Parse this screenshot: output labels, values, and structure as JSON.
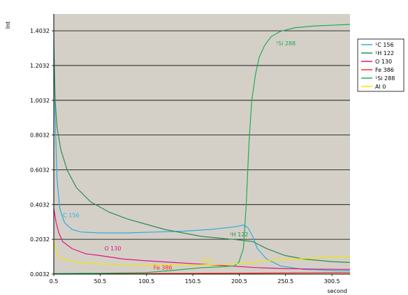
{
  "chart_data": {
    "type": "line",
    "title": "",
    "xlabel": "second",
    "ylabel": "Int",
    "xlim": [
      0.5,
      320
    ],
    "ylim": [
      0.0032,
      1.5
    ],
    "x_ticks": [
      "0.5",
      "50.5",
      "100.5",
      "150.5",
      "200.5",
      "250.5",
      "300.5"
    ],
    "y_ticks": [
      "0.0032",
      "0.2032",
      "0.4032",
      "0.6032",
      "0.8032",
      "1.0032",
      "1.2032",
      "1.4032"
    ],
    "grid": "horizontal",
    "legend_position": "right",
    "plot_background": "#d4d0c8",
    "series": [
      {
        "name": "¹C 156",
        "color": "#33aadd",
        "annotation": {
          "text": "¹C 156",
          "x": 8,
          "y": 0.33
        },
        "points": [
          [
            0.5,
            1.4
          ],
          [
            2,
            0.9
          ],
          [
            4,
            0.55
          ],
          [
            7,
            0.38
          ],
          [
            12,
            0.3
          ],
          [
            20,
            0.26
          ],
          [
            30,
            0.245
          ],
          [
            50,
            0.24
          ],
          [
            80,
            0.24
          ],
          [
            110,
            0.245
          ],
          [
            140,
            0.25
          ],
          [
            170,
            0.26
          ],
          [
            195,
            0.275
          ],
          [
            205,
            0.285
          ],
          [
            210,
            0.27
          ],
          [
            215,
            0.22
          ],
          [
            220,
            0.15
          ],
          [
            230,
            0.09
          ],
          [
            245,
            0.05
          ],
          [
            270,
            0.03
          ],
          [
            300,
            0.025
          ],
          [
            320,
            0.023
          ]
        ]
      },
      {
        "name": "¹H 122",
        "color": "#2e8b57",
        "annotation": {
          "text": "¹H 122",
          "x": 190,
          "y": 0.22
        },
        "points": [
          [
            0.5,
            1.3
          ],
          [
            2,
            1.0
          ],
          [
            4,
            0.85
          ],
          [
            8,
            0.72
          ],
          [
            15,
            0.6
          ],
          [
            25,
            0.5
          ],
          [
            40,
            0.42
          ],
          [
            60,
            0.36
          ],
          [
            80,
            0.32
          ],
          [
            100,
            0.29
          ],
          [
            120,
            0.26
          ],
          [
            140,
            0.24
          ],
          [
            160,
            0.22
          ],
          [
            180,
            0.21
          ],
          [
            200,
            0.2
          ],
          [
            215,
            0.19
          ],
          [
            230,
            0.15
          ],
          [
            250,
            0.11
          ],
          [
            270,
            0.09
          ],
          [
            300,
            0.075
          ],
          [
            320,
            0.07
          ]
        ]
      },
      {
        "name": "O 130",
        "color": "#e0157e",
        "annotation": {
          "text": "O 130",
          "x": 55,
          "y": 0.14
        },
        "points": [
          [
            0.5,
            0.38
          ],
          [
            3,
            0.3
          ],
          [
            6,
            0.24
          ],
          [
            10,
            0.19
          ],
          [
            20,
            0.15
          ],
          [
            35,
            0.12
          ],
          [
            50,
            0.11
          ],
          [
            75,
            0.09
          ],
          [
            100,
            0.08
          ],
          [
            130,
            0.07
          ],
          [
            160,
            0.06
          ],
          [
            190,
            0.05
          ],
          [
            220,
            0.04
          ],
          [
            250,
            0.035
          ],
          [
            280,
            0.032
          ],
          [
            320,
            0.03
          ]
        ]
      },
      {
        "name": "Fe 386",
        "color": "#ff2a1a",
        "annotation": {
          "text": "Fe 386",
          "x": 108,
          "y": 0.03
        },
        "points": [
          [
            0.5,
            0.005
          ],
          [
            50,
            0.005
          ],
          [
            100,
            0.006
          ],
          [
            140,
            0.007
          ],
          [
            180,
            0.008
          ],
          [
            220,
            0.009
          ],
          [
            260,
            0.01
          ],
          [
            300,
            0.012
          ],
          [
            320,
            0.012
          ]
        ]
      },
      {
        "name": "¹Si 288",
        "color": "#22aa55",
        "annotation": {
          "text": "¹Si 288",
          "x": 240,
          "y": 1.32
        },
        "points": [
          [
            0.5,
            0.006
          ],
          [
            50,
            0.008
          ],
          [
            100,
            0.012
          ],
          [
            130,
            0.025
          ],
          [
            160,
            0.04
          ],
          [
            180,
            0.045
          ],
          [
            195,
            0.05
          ],
          [
            200,
            0.07
          ],
          [
            205,
            0.15
          ],
          [
            208,
            0.4
          ],
          [
            211,
            0.75
          ],
          [
            214,
            1.0
          ],
          [
            218,
            1.15
          ],
          [
            222,
            1.25
          ],
          [
            228,
            1.32
          ],
          [
            235,
            1.37
          ],
          [
            245,
            1.4
          ],
          [
            260,
            1.42
          ],
          [
            280,
            1.43
          ],
          [
            300,
            1.435
          ],
          [
            320,
            1.44
          ]
        ]
      },
      {
        "name": "Al 0",
        "color": "#f2e600",
        "annotation": {
          "text": "Al 0",
          "x": 160,
          "y": 0.07
        },
        "points": [
          [
            0.5,
            0.2
          ],
          [
            2,
            0.15
          ],
          [
            5,
            0.11
          ],
          [
            10,
            0.09
          ],
          [
            20,
            0.075
          ],
          [
            40,
            0.065
          ],
          [
            60,
            0.06
          ],
          [
            100,
            0.055
          ],
          [
            140,
            0.055
          ],
          [
            180,
            0.058
          ],
          [
            210,
            0.065
          ],
          [
            225,
            0.08
          ],
          [
            240,
            0.085
          ],
          [
            260,
            0.09
          ],
          [
            280,
            0.095
          ],
          [
            300,
            0.1
          ],
          [
            320,
            0.1
          ]
        ]
      }
    ]
  }
}
